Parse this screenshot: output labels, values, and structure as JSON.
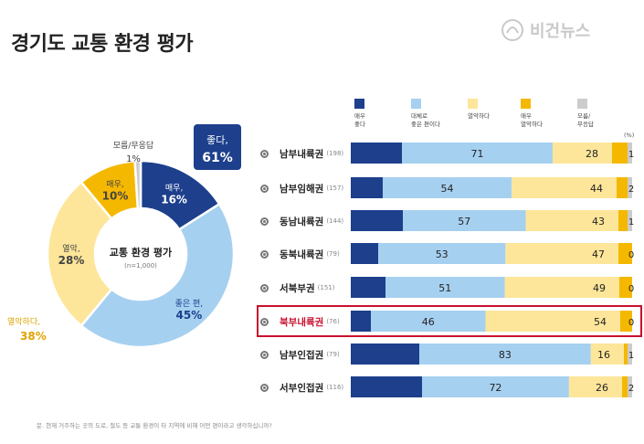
{
  "page": {
    "title": "경기도 교통 환경 평가",
    "watermark": "비건뉴스",
    "footnote": "문. 현재 거주하는 곳의 도로, 철도 등 교통 환경이 타 지역에 비해 어떤 편이라고 생각하십니까?"
  },
  "colors": {
    "very_good": "#1d3f8c",
    "good": "#a6d0f0",
    "weak": "#fde69a",
    "very_weak": "#f5b800",
    "dk": "#cccccc"
  },
  "chart_data": [
    {
      "type": "pie",
      "title": "교통 환경 평가",
      "subtitle": "(n=1,000)",
      "slices": [
        {
          "label": "매우,",
          "value": 16,
          "display": "16%",
          "color": "#1d3f8c"
        },
        {
          "label": "좋은 편,",
          "value": 45,
          "display": "45%",
          "color": "#a6d0f0"
        },
        {
          "label": "열악,",
          "value": 28,
          "display": "28%",
          "color": "#fde69a"
        },
        {
          "label": "매우,",
          "value": 10,
          "display": "10%",
          "color": "#f5b800"
        },
        {
          "label": "모름/무응답",
          "value": 1,
          "display": "1%",
          "color": "#cccccc"
        }
      ],
      "group_labels": [
        {
          "label": "좋다,",
          "value": "61%"
        },
        {
          "label": "열악하다,",
          "value": "38%"
        }
      ]
    },
    {
      "type": "bar",
      "stacked": true,
      "unit": "(%)",
      "categories": [
        "남부내륙권",
        "남부임해권",
        "동남내륙권",
        "동북내륙권",
        "서북부권",
        "북부내륙권",
        "남부인접권",
        "서부인접권"
      ],
      "sample_sizes": [
        "(198)",
        "(157)",
        "(144)",
        "(79)",
        "(151)",
        "(76)",
        "(79)",
        "(116)"
      ],
      "highlighted": "북부내륙권",
      "series": [
        {
          "name": "매우\n좋다",
          "values": [
            null,
            null,
            null,
            null,
            null,
            null,
            null,
            null
          ],
          "color": "#1d3f8c"
        },
        {
          "name": "대체로\n좋은 편이다",
          "values": [
            71,
            54,
            57,
            53,
            51,
            46,
            83,
            72
          ],
          "color": "#a6d0f0"
        },
        {
          "name": "열악하다",
          "values": [
            28,
            44,
            43,
            47,
            49,
            54,
            16,
            26
          ],
          "color": "#fde69a"
        },
        {
          "name": "매우\n열악하다",
          "values": [
            null,
            null,
            null,
            null,
            null,
            null,
            null,
            null
          ],
          "color": "#f5b800"
        },
        {
          "name": "모름/\n무응답",
          "values": [
            1,
            2,
            1,
            0,
            0,
            0,
            1,
            2
          ],
          "color": "#cccccc"
        }
      ]
    }
  ]
}
